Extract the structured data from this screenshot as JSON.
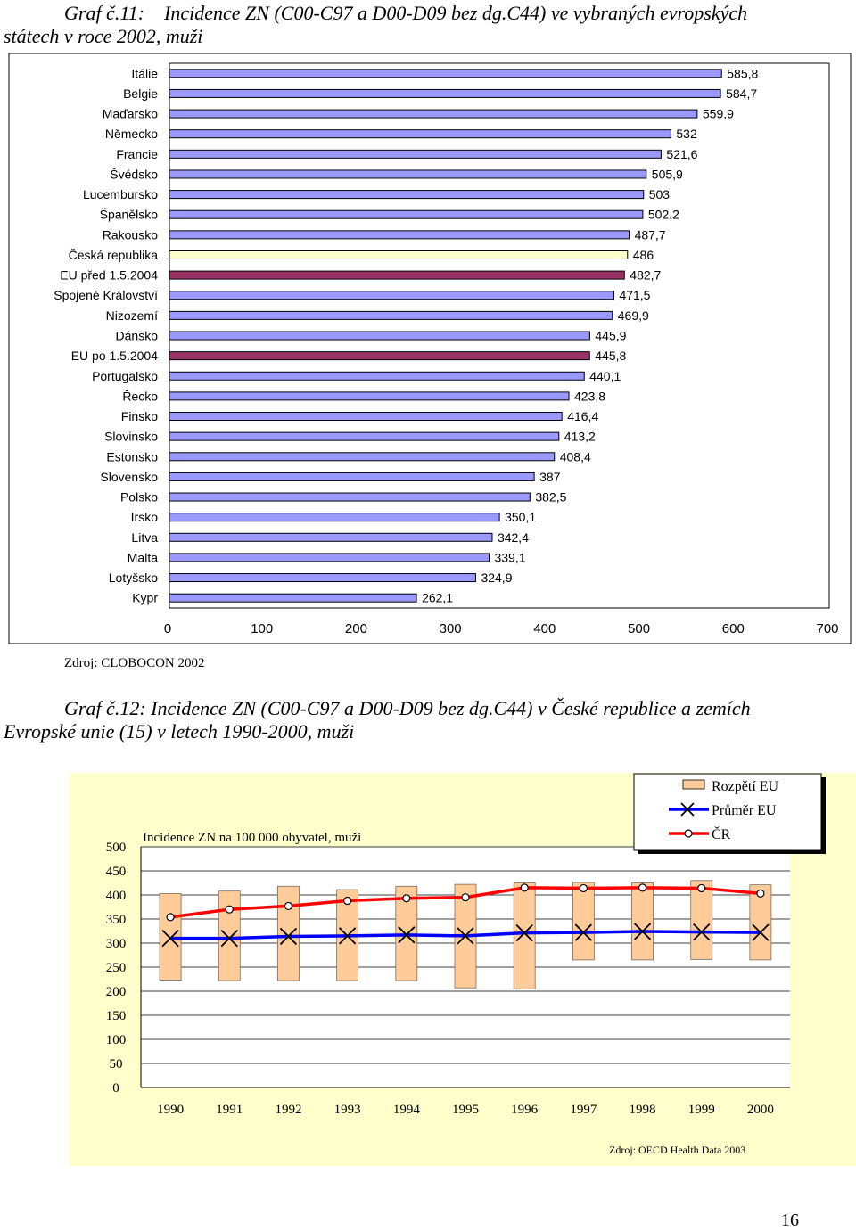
{
  "chart1_title": {
    "prefix": "Graf č.11:",
    "line1": "Incidence ZN (C00-C97 a D00-D09 bez dg.C44) ve vybraných evropských",
    "line2": "státech v roce 2002, muži"
  },
  "chart1_source": "Zdroj: CLOBOCON 2002",
  "chart2_title": {
    "line1": "Graf č.12: Incidence ZN (C00-C97 a D00-D09 bez dg.C44) v České republice a zemích",
    "line2": "Evropské unie (15) v letech 1990-2000, muži"
  },
  "chart2_source": "Zdroj: OECD Health Data 2003",
  "page_number": "16",
  "colors": {
    "bar_fill": "#9999ff",
    "bar_cz": "#ffffcc",
    "bar_eu": "#993366",
    "band_fill": "#ffcc99",
    "eu_line": "#0000ff",
    "cz_line": "#ff0000",
    "chart2_bg": "#ffffcc"
  },
  "chart_data": [
    {
      "type": "bar",
      "orientation": "horizontal",
      "categories": [
        "Itálie",
        "Belgie",
        "Maďarsko",
        "Německo",
        "Francie",
        "Švédsko",
        "Lucembursko",
        "Španělsko",
        "Rakousko",
        "Česká republika",
        "EU před 1.5.2004",
        "Spojené Království",
        "Nizozemí",
        "Dánsko",
        "EU po 1.5.2004",
        "Portugalsko",
        "Řecko",
        "Finsko",
        "Slovinsko",
        "Estonsko",
        "Slovensko",
        "Polsko",
        "Irsko",
        "Litva",
        "Malta",
        "Lotyšsko",
        "Kypr"
      ],
      "values": [
        585.8,
        584.7,
        559.9,
        532,
        521.6,
        505.9,
        503,
        502.2,
        487.7,
        486,
        482.7,
        471.5,
        469.9,
        445.9,
        445.8,
        440.1,
        423.8,
        416.4,
        413.2,
        408.4,
        387,
        382.5,
        350.1,
        342.4,
        339.1,
        324.9,
        262.1
      ],
      "labels": [
        "585,8",
        "584,7",
        "559,9",
        "532",
        "521,6",
        "505,9",
        "503",
        "502,2",
        "487,7",
        "486",
        "482,7",
        "471,5",
        "469,9",
        "445,9",
        "445,8",
        "440,1",
        "423,8",
        "416,4",
        "413,2",
        "408,4",
        "387",
        "382,5",
        "350,1",
        "342,4",
        "339,1",
        "324,9",
        "262,1"
      ],
      "highlight": {
        "Česká republika": "cz",
        "EU před 1.5.2004": "eu",
        "EU po 1.5.2004": "eu"
      },
      "xlim": [
        0,
        700
      ],
      "xticks": [
        "0",
        "100",
        "200",
        "300",
        "400",
        "500",
        "600",
        "700"
      ]
    },
    {
      "type": "line",
      "title": "Incidence ZN na 100 000 obyvatel, muži",
      "x": [
        "1990",
        "1991",
        "1992",
        "1993",
        "1994",
        "1995",
        "1996",
        "1997",
        "1998",
        "1999",
        "2000"
      ],
      "ylim": [
        0,
        500
      ],
      "yticks": [
        "0",
        "50",
        "100",
        "150",
        "200",
        "250",
        "300",
        "350",
        "400",
        "450",
        "500"
      ],
      "legend": {
        "range": "Rozpětí EU",
        "mean": "Průměr EU",
        "cz": "ČR"
      },
      "legend_position": "top-right",
      "series": [
        {
          "name": "Rozpětí EU",
          "type": "range",
          "low": [
            223,
            222,
            222,
            222,
            222,
            207,
            205,
            265,
            265,
            266,
            265
          ],
          "high": [
            403,
            408,
            418,
            411,
            418,
            422,
            425,
            426,
            425,
            430,
            421
          ]
        },
        {
          "name": "Průměr EU",
          "values": [
            310,
            310,
            314,
            315,
            317,
            315,
            321,
            322,
            324,
            323,
            322
          ]
        },
        {
          "name": "ČR",
          "values": [
            354,
            370,
            377,
            388,
            393,
            395,
            415,
            414,
            415,
            414,
            403
          ]
        }
      ]
    }
  ]
}
